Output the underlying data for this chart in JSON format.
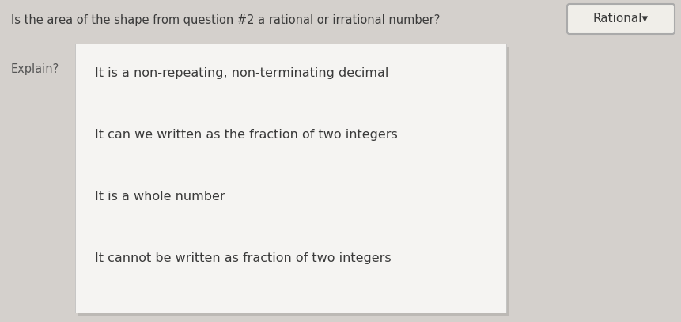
{
  "question_text": "Is the area of the shape from question #2 a rational or irrational number?",
  "dropdown_text": "Rational▾",
  "explain_label": "Explain?",
  "options": [
    "It is a non-repeating, non-terminating decimal",
    "It can we written as the fraction of two integers",
    "It is a whole number",
    "It cannot be written as fraction of two integers"
  ],
  "background_color": "#d4d0cc",
  "white_box_color": "#f5f4f2",
  "question_fontsize": 10.5,
  "option_fontsize": 11.5,
  "label_fontsize": 10.5,
  "dropdown_fontsize": 11,
  "text_color": "#3a3a3a",
  "label_color": "#555555",
  "dropdown_border_color": "#aaaaaa",
  "box_border_color": "#bbbbbb"
}
